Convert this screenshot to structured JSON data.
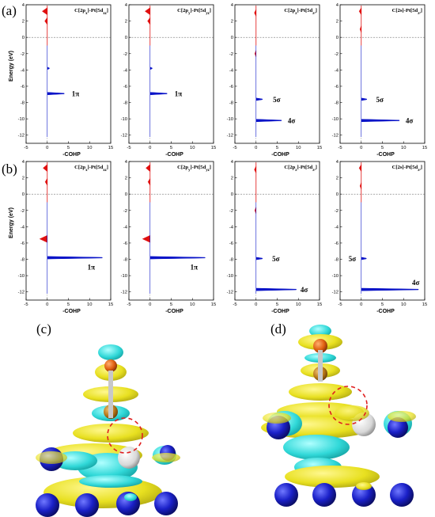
{
  "panel_labels": [
    "(a)",
    "(b)",
    "(c)",
    "(d)"
  ],
  "chart_data": [
    {
      "type": "area",
      "panel": "(a)",
      "title": "C[2p_x]-Pt[5d_xz]",
      "xlabel": "-COHP",
      "ylabel": "Energy (eV)",
      "xlim": [
        -5,
        15
      ],
      "ylim": [
        -13,
        4
      ],
      "xticks": [
        -5,
        0,
        5,
        10,
        15
      ],
      "yticks": [
        4,
        2,
        0,
        -2,
        -4,
        -6,
        -8,
        -10,
        -12
      ],
      "fermi_level": 0,
      "positive_color": "#0a14c8",
      "negative_color": "#e01010",
      "peaks": [
        {
          "energy": -6.9,
          "value": 4.0
        },
        {
          "energy": -3.8,
          "value": 0.5
        }
      ],
      "neg_peaks": [
        {
          "energy": 3.2,
          "value": -1.2
        },
        {
          "energy": 2.0,
          "value": -0.6
        }
      ],
      "annotations": [
        {
          "text": "1π",
          "energy": -6.9,
          "x": 5.8
        }
      ]
    },
    {
      "type": "area",
      "panel": "(a)",
      "title": "C[2p_y]-Pt[5d_yz]",
      "xlabel": "-COHP",
      "ylabel": "",
      "xlim": [
        -5,
        15
      ],
      "ylim": [
        -13,
        4
      ],
      "xticks": [
        -5,
        0,
        5,
        10,
        15
      ],
      "yticks": [
        4,
        2,
        0,
        -2,
        -4,
        -6,
        -8,
        -10,
        -12
      ],
      "fermi_level": 0,
      "positive_color": "#0a14c8",
      "negative_color": "#e01010",
      "peaks": [
        {
          "energy": -6.9,
          "value": 4.0
        },
        {
          "energy": -3.8,
          "value": 0.5
        }
      ],
      "neg_peaks": [
        {
          "energy": 3.2,
          "value": -1.2
        },
        {
          "energy": 2.0,
          "value": -0.6
        }
      ],
      "annotations": [
        {
          "text": "1π",
          "energy": -6.9,
          "x": 5.8
        }
      ]
    },
    {
      "type": "area",
      "panel": "(a)",
      "title": "C[2p_z]-Pt[5d_z²]",
      "xlabel": "-COHP",
      "ylabel": "",
      "xlim": [
        -5,
        15
      ],
      "ylim": [
        -13,
        4
      ],
      "xticks": [
        -5,
        0,
        5,
        10,
        15
      ],
      "yticks": [
        4,
        2,
        0,
        -2,
        -4,
        -6,
        -8,
        -10,
        -12
      ],
      "fermi_level": 0,
      "positive_color": "#0a14c8",
      "negative_color": "#e01010",
      "peaks": [
        {
          "energy": -7.6,
          "value": 1.5
        },
        {
          "energy": -10.2,
          "value": 6.0
        }
      ],
      "neg_peaks": [
        {
          "energy": 3.0,
          "value": -0.4
        },
        {
          "energy": -2.0,
          "value": -0.3
        }
      ],
      "annotations": [
        {
          "text": "5σ",
          "energy": -7.6,
          "x": 4.0
        },
        {
          "text": "4σ",
          "energy": -10.2,
          "x": 7.5
        }
      ]
    },
    {
      "type": "area",
      "panel": "(a)",
      "title": "C[2s]-Pt[5d_z²]",
      "xlabel": "-COHP",
      "ylabel": "",
      "xlim": [
        -5,
        15
      ],
      "ylim": [
        -13,
        4
      ],
      "xticks": [
        -5,
        0,
        5,
        10,
        15
      ],
      "yticks": [
        4,
        2,
        0,
        -2,
        -4,
        -6,
        -8,
        -10,
        -12
      ],
      "fermi_level": 0,
      "positive_color": "#0a14c8",
      "negative_color": "#e01010",
      "peaks": [
        {
          "energy": -7.6,
          "value": 1.3
        },
        {
          "energy": -10.2,
          "value": 9.0
        }
      ],
      "neg_peaks": [
        {
          "energy": 3.2,
          "value": -0.5
        },
        {
          "energy": 1.0,
          "value": -0.3
        }
      ],
      "annotations": [
        {
          "text": "5σ",
          "energy": -7.6,
          "x": 3.5
        },
        {
          "text": "4σ",
          "energy": -10.2,
          "x": 10.5
        }
      ]
    },
    {
      "type": "area",
      "panel": "(b)",
      "title": "C[2p_x]-Pt[5d_xz]",
      "xlabel": "-COHP",
      "ylabel": "Energy (eV)",
      "xlim": [
        -5,
        15
      ],
      "ylim": [
        -13,
        4
      ],
      "xticks": [
        -5,
        0,
        5,
        10,
        15
      ],
      "yticks": [
        4,
        2,
        0,
        -2,
        -4,
        -6,
        -8,
        -10,
        -12
      ],
      "fermi_level": 0,
      "positive_color": "#0a14c8",
      "negative_color": "#e01010",
      "peaks": [
        {
          "energy": -7.8,
          "value": 13.0
        }
      ],
      "neg_peaks": [
        {
          "energy": -5.5,
          "value": -1.8
        },
        {
          "energy": 3.2,
          "value": -1.0
        },
        {
          "energy": 1.5,
          "value": -0.5
        }
      ],
      "annotations": [
        {
          "text": "1π",
          "energy": -8.9,
          "x": 9.5
        }
      ]
    },
    {
      "type": "area",
      "panel": "(b)",
      "title": "C[2p_y]-Pt[5d_yz]",
      "xlabel": "-COHP",
      "ylabel": "",
      "xlim": [
        -5,
        15
      ],
      "ylim": [
        -13,
        4
      ],
      "xticks": [
        -5,
        0,
        5,
        10,
        15
      ],
      "yticks": [
        4,
        2,
        0,
        -2,
        -4,
        -6,
        -8,
        -10,
        -12
      ],
      "fermi_level": 0,
      "positive_color": "#0a14c8",
      "negative_color": "#e01010",
      "peaks": [
        {
          "energy": -7.8,
          "value": 13.0
        }
      ],
      "neg_peaks": [
        {
          "energy": -5.5,
          "value": -1.8
        },
        {
          "energy": 3.2,
          "value": -1.0
        },
        {
          "energy": 1.5,
          "value": -0.5
        }
      ],
      "annotations": [
        {
          "text": "1π",
          "energy": -8.9,
          "x": 9.5
        }
      ]
    },
    {
      "type": "area",
      "panel": "(b)",
      "title": "C[2p_z]-Pt[5d_z²]",
      "xlabel": "-COHP",
      "ylabel": "",
      "xlim": [
        -5,
        15
      ],
      "ylim": [
        -13,
        4
      ],
      "xticks": [
        -5,
        0,
        5,
        10,
        15
      ],
      "yticks": [
        4,
        2,
        0,
        -2,
        -4,
        -6,
        -8,
        -10,
        -12
      ],
      "fermi_level": 0,
      "positive_color": "#0a14c8",
      "negative_color": "#e01010",
      "peaks": [
        {
          "energy": -7.9,
          "value": 1.5
        },
        {
          "energy": -11.7,
          "value": 9.5
        }
      ],
      "neg_peaks": [
        {
          "energy": 3.0,
          "value": -0.4
        },
        {
          "energy": -2.0,
          "value": -0.3
        }
      ],
      "annotations": [
        {
          "text": "5σ",
          "energy": -7.9,
          "x": 3.8
        },
        {
          "text": "4σ",
          "energy": -11.7,
          "x": 10.5
        }
      ]
    },
    {
      "type": "area",
      "panel": "(b)",
      "title": "C[2s]-Pt[5d_z²]",
      "xlabel": "-COHP",
      "ylabel": "",
      "xlim": [
        -5,
        15
      ],
      "ylim": [
        -13,
        4
      ],
      "xticks": [
        -5,
        0,
        5,
        10,
        15
      ],
      "yticks": [
        4,
        2,
        0,
        -2,
        -4,
        -6,
        -8,
        -10,
        -12
      ],
      "fermi_level": 0,
      "positive_color": "#0a14c8",
      "negative_color": "#e01010",
      "peaks": [
        {
          "energy": -7.9,
          "value": 1.2
        },
        {
          "energy": -11.7,
          "value": 13.5
        }
      ],
      "neg_peaks": [
        {
          "energy": 3.2,
          "value": -0.5
        },
        {
          "energy": 1.0,
          "value": -0.3
        }
      ],
      "annotations": [
        {
          "text": "5σ",
          "energy": -7.9,
          "x": -3.0
        },
        {
          "text": "4σ",
          "energy": -10.8,
          "x": 12.0
        }
      ]
    }
  ],
  "render_colors": {
    "isosurface_yellow": "#e8e020",
    "isosurface_cyan": "#30d8d8",
    "pt_atom": "#1a20c8",
    "c_atom": "#c08020",
    "o_atom": "#e06010",
    "h_atom": "#e8e8e8",
    "highlight_circle": "#e02020"
  }
}
